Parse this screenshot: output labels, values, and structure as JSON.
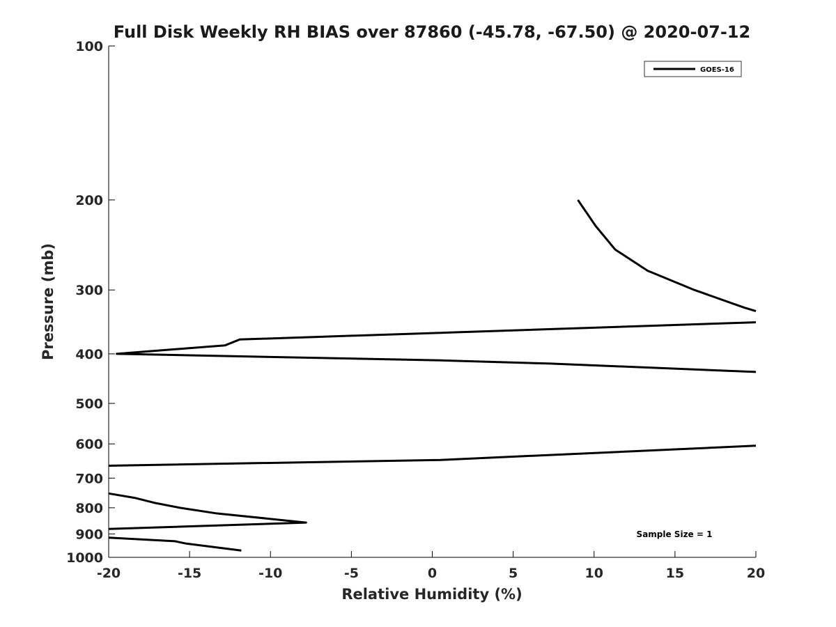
{
  "chart_data": {
    "type": "line",
    "title": "Full Disk Weekly RH BIAS over 87860 (-45.78, -67.50) @ 2020-07-12",
    "xlabel": "Relative Humidity (%)",
    "ylabel": "Pressure (mb)",
    "xlim": [
      -20,
      20
    ],
    "ylim": [
      100,
      1000
    ],
    "yscale": "log",
    "yreversed": true,
    "xticks": [
      -20,
      -15,
      -10,
      -5,
      0,
      5,
      10,
      15,
      20
    ],
    "xtick_labels": [
      "-20",
      "-15",
      "-10",
      "-5",
      "0",
      "5",
      "10",
      "15",
      "20"
    ],
    "yticks": [
      100,
      200,
      300,
      400,
      500,
      600,
      700,
      800,
      900,
      1000
    ],
    "ytick_labels": [
      "100",
      "200",
      "300",
      "400",
      "500",
      "600",
      "700",
      "800",
      "900",
      "1000"
    ],
    "grid": false,
    "legend_position": "top-right",
    "series": [
      {
        "name": "GOES-16",
        "color": "#000000",
        "points": [
          [
            9.0,
            200
          ],
          [
            10.1,
            225
          ],
          [
            11.3,
            250
          ],
          [
            13.3,
            275
          ],
          [
            16.2,
            300
          ],
          [
            19.3,
            325
          ],
          [
            20.0,
            330
          ],
          [
            null,
            null
          ],
          [
            20.0,
            347
          ],
          [
            -11.9,
            375
          ],
          [
            -12.8,
            385
          ],
          [
            -19.5,
            400
          ],
          [
            0.5,
            412
          ],
          [
            7.3,
            418
          ],
          [
            20.0,
            434
          ],
          [
            null,
            null
          ],
          [
            20.0,
            605
          ],
          [
            0.5,
            645
          ],
          [
            -20.0,
            662
          ],
          [
            null,
            null
          ],
          [
            -20.0,
            750
          ],
          [
            -18.4,
            765
          ],
          [
            -17.2,
            782
          ],
          [
            -15.6,
            800
          ],
          [
            -13.4,
            820
          ],
          [
            -7.8,
            855
          ],
          [
            -20.0,
            880
          ],
          [
            null,
            null
          ],
          [
            -20.0,
            915
          ],
          [
            -15.9,
            930
          ],
          [
            -15.2,
            940
          ],
          [
            -11.8,
            970
          ]
        ]
      }
    ],
    "annotations": [
      "Sample Size = 1"
    ]
  }
}
